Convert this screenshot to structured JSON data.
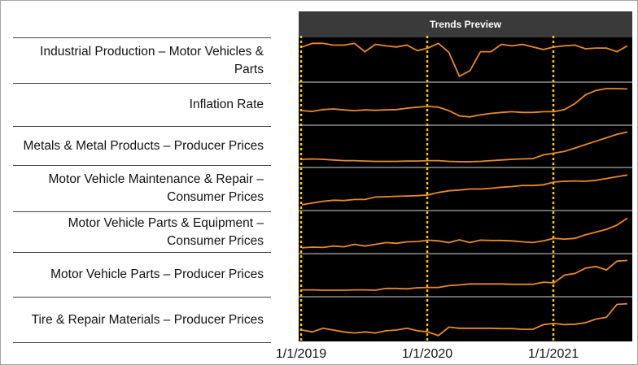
{
  "header": {
    "title": "Trends Preview"
  },
  "chart_data": {
    "type": "line",
    "title": "Trends Preview",
    "x_tick_labels": [
      "1/1/2019",
      "1/1/2020",
      "1/1/2021"
    ],
    "x_unit": "month index from Jan 2019",
    "y_scale": "normalized per series (0-1)",
    "line_color": "#e8892a",
    "marker_color": "#f5c518",
    "series": [
      {
        "name": "Industrial Production – Motor Vehicles & Parts",
        "values": [
          0.85,
          0.95,
          0.95,
          0.9,
          0.9,
          0.95,
          0.72,
          0.92,
          0.88,
          0.85,
          0.9,
          0.75,
          0.82,
          0.95,
          0.7,
          0.05,
          0.2,
          0.72,
          0.72,
          0.92,
          0.88,
          0.92,
          0.85,
          0.78,
          0.85,
          0.88,
          0.9,
          0.8,
          0.82,
          0.82,
          0.72,
          0.88
        ]
      },
      {
        "name": "Inflation Rate",
        "values": [
          0.3,
          0.28,
          0.33,
          0.35,
          0.32,
          0.3,
          0.32,
          0.31,
          0.32,
          0.33,
          0.37,
          0.4,
          0.42,
          0.4,
          0.3,
          0.15,
          0.12,
          0.18,
          0.22,
          0.25,
          0.27,
          0.25,
          0.25,
          0.27,
          0.27,
          0.33,
          0.5,
          0.75,
          0.88,
          0.93,
          0.93,
          0.92
        ]
      },
      {
        "name": "Metals & Metal Products – Producer Prices",
        "values": [
          0.12,
          0.13,
          0.12,
          0.1,
          0.08,
          0.08,
          0.07,
          0.06,
          0.06,
          0.06,
          0.07,
          0.07,
          0.08,
          0.08,
          0.06,
          0.05,
          0.05,
          0.06,
          0.08,
          0.1,
          0.12,
          0.13,
          0.14,
          0.25,
          0.3,
          0.35,
          0.45,
          0.55,
          0.65,
          0.75,
          0.85,
          0.92
        ]
      },
      {
        "name": "Motor Vehicle Maintenance & Repair – Consumer Prices",
        "values": [
          0.05,
          0.1,
          0.15,
          0.18,
          0.17,
          0.2,
          0.2,
          0.27,
          0.28,
          0.29,
          0.3,
          0.31,
          0.33,
          0.4,
          0.45,
          0.47,
          0.5,
          0.5,
          0.52,
          0.55,
          0.57,
          0.6,
          0.6,
          0.62,
          0.7,
          0.72,
          0.73,
          0.72,
          0.75,
          0.8,
          0.85,
          0.9
        ]
      },
      {
        "name": "Motor Vehicle Parts & Equipment – Consumer Prices",
        "values": [
          0.05,
          0.07,
          0.06,
          0.1,
          0.08,
          0.15,
          0.1,
          0.15,
          0.2,
          0.18,
          0.22,
          0.23,
          0.27,
          0.25,
          0.2,
          0.28,
          0.2,
          0.27,
          0.26,
          0.26,
          0.25,
          0.22,
          0.2,
          0.25,
          0.32,
          0.3,
          0.32,
          0.42,
          0.5,
          0.58,
          0.7,
          0.9
        ]
      },
      {
        "name": "Motor Vehicle Parts – Producer Prices",
        "values": [
          0.08,
          0.08,
          0.07,
          0.07,
          0.07,
          0.08,
          0.08,
          0.07,
          0.12,
          0.12,
          0.11,
          0.14,
          0.15,
          0.15,
          0.2,
          0.22,
          0.25,
          0.25,
          0.25,
          0.25,
          0.24,
          0.24,
          0.24,
          0.3,
          0.28,
          0.5,
          0.55,
          0.7,
          0.75,
          0.65,
          0.9,
          0.92
        ]
      },
      {
        "name": "Tire & Repair Materials – Producer Prices",
        "values": [
          0.2,
          0.15,
          0.25,
          0.2,
          0.15,
          0.12,
          0.15,
          0.12,
          0.18,
          0.2,
          0.25,
          0.18,
          0.15,
          0.05,
          0.28,
          0.25,
          0.25,
          0.25,
          0.25,
          0.24,
          0.24,
          0.22,
          0.22,
          0.35,
          0.38,
          0.35,
          0.36,
          0.4,
          0.5,
          0.55,
          0.9,
          0.92
        ]
      }
    ]
  }
}
